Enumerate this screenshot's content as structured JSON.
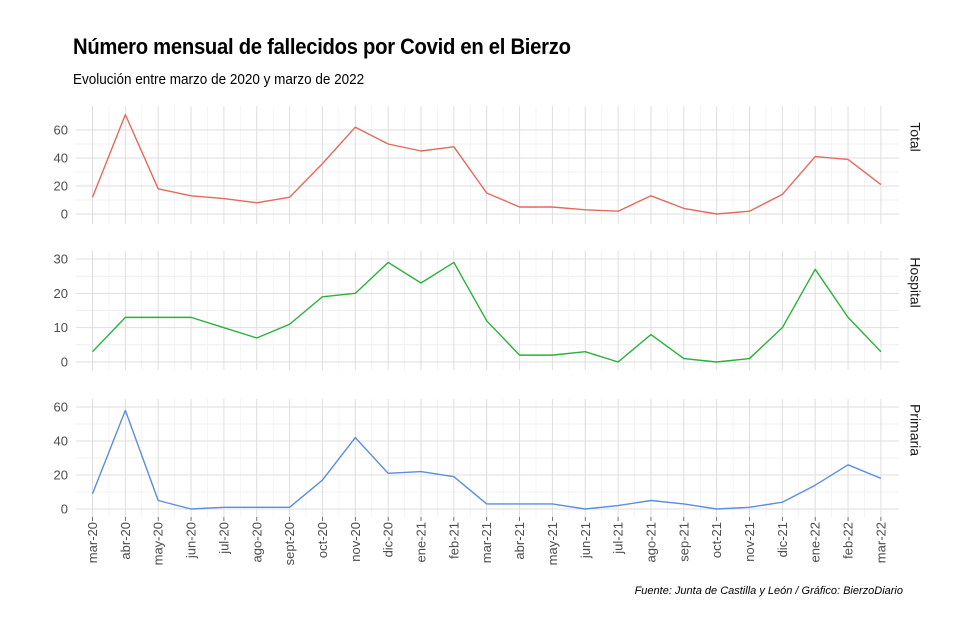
{
  "title": "Número mensual de fallecidos por Covid en el Bierzo",
  "subtitle": "Evolución entre marzo de 2020 y marzo de 2022",
  "caption": "Fuente: Junta de Castilla y León / Gráfico: BierzoDiario",
  "chart_data": {
    "type": "line",
    "categories": [
      "mar-20",
      "abr-20",
      "may-20",
      "jun-20",
      "jul-20",
      "ago-20",
      "sept-20",
      "oct-20",
      "nov-20",
      "dic-20",
      "ene-21",
      "feb-21",
      "mar-21",
      "abr-21",
      "may-21",
      "jun-21",
      "jul-21",
      "ago-21",
      "sep-21",
      "oct-21",
      "nov-21",
      "dic-21",
      "ene-22",
      "feb-22",
      "mar-22"
    ],
    "grid": true,
    "legend": "none",
    "panels": [
      {
        "name": "Total",
        "color": "#e36a5e",
        "ylim": [
          0,
          72
        ],
        "yticks": [
          0,
          20,
          40,
          60
        ],
        "values": [
          12,
          71,
          18,
          13,
          11,
          8,
          12,
          36,
          62,
          50,
          45,
          48,
          15,
          5,
          5,
          3,
          2,
          13,
          4,
          0,
          2,
          14,
          41,
          39,
          21
        ]
      },
      {
        "name": "Hospital",
        "color": "#2ab03a",
        "ylim": [
          0,
          30
        ],
        "yticks": [
          0,
          10,
          20,
          30
        ],
        "values": [
          3,
          13,
          13,
          13,
          10,
          7,
          11,
          19,
          20,
          29,
          23,
          29,
          12,
          2,
          2,
          3,
          0,
          8,
          1,
          0,
          1,
          10,
          27,
          13,
          3
        ]
      },
      {
        "name": "Primaria",
        "color": "#5b8de0",
        "ylim": [
          0,
          60
        ],
        "yticks": [
          0,
          20,
          40,
          60
        ],
        "values": [
          9,
          58,
          5,
          0,
          1,
          1,
          1,
          17,
          42,
          21,
          22,
          19,
          3,
          3,
          3,
          0,
          2,
          5,
          3,
          0,
          1,
          4,
          14,
          26,
          18
        ]
      }
    ]
  }
}
